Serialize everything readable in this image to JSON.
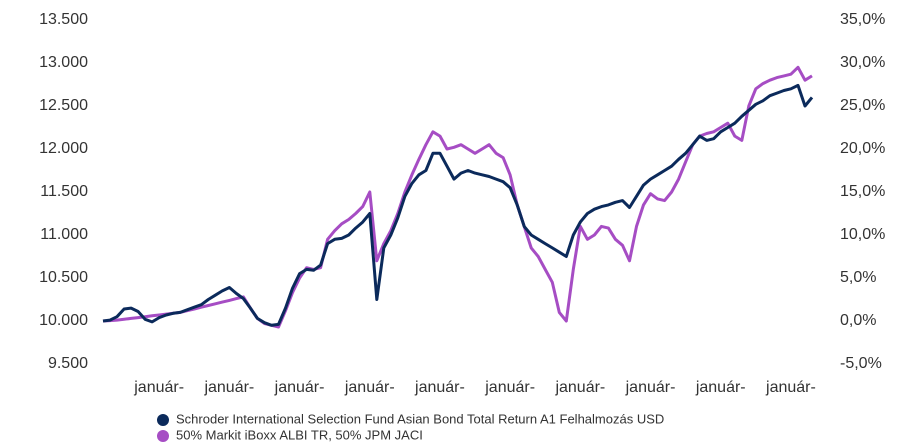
{
  "chart_data": {
    "type": "line",
    "categories": [
      null,
      null,
      null,
      null,
      null,
      null,
      null,
      null,
      "január-",
      null,
      null,
      null,
      null,
      null,
      null,
      null,
      null,
      null,
      "január-",
      null,
      null,
      null,
      null,
      null,
      null,
      null,
      null,
      null,
      "január-",
      null,
      null,
      null,
      null,
      null,
      null,
      null,
      null,
      null,
      "január-",
      null,
      null,
      null,
      null,
      null,
      null,
      null,
      null,
      null,
      "január-",
      null,
      null,
      null,
      null,
      null,
      null,
      null,
      null,
      null,
      "január-",
      null,
      null,
      null,
      null,
      null,
      null,
      null,
      null,
      null,
      "január-",
      null,
      null,
      null,
      null,
      null,
      null,
      null,
      null,
      null,
      "január-",
      null,
      null,
      null,
      null,
      null,
      null,
      null,
      null,
      null,
      "január-",
      null,
      null,
      null,
      null,
      null,
      null,
      null,
      null,
      null,
      "január-",
      null,
      null,
      null
    ],
    "series": [
      {
        "name": "Schroder International Selection Fund Asian Bond Total Return A1 Felhalmozás USD",
        "color": "#0b2a5b",
        "values": [
          10000,
          10010,
          10050,
          10140,
          10150,
          10110,
          10020,
          9990,
          10040,
          10070,
          10090,
          10100,
          10130,
          10160,
          10190,
          10250,
          10300,
          10350,
          10390,
          10320,
          10260,
          10150,
          10030,
          9980,
          9950,
          9960,
          10150,
          10380,
          10550,
          10600,
          10590,
          10650,
          10900,
          10950,
          10960,
          11000,
          11080,
          11150,
          11250,
          10250,
          10850,
          11000,
          11200,
          11450,
          11600,
          11700,
          11750,
          11950,
          11950,
          11800,
          11650,
          11720,
          11750,
          11720,
          11700,
          11680,
          11650,
          11620,
          11550,
          11350,
          11100,
          11000,
          10950,
          10900,
          10850,
          10800,
          10750,
          11000,
          11150,
          11250,
          11300,
          11330,
          11350,
          11380,
          11400,
          11320,
          11450,
          11580,
          11650,
          11700,
          11750,
          11800,
          11880,
          11950,
          12050,
          12150,
          12100,
          12120,
          12200,
          12250,
          12300,
          12380,
          12450,
          12520,
          12560,
          12620,
          12650,
          12680,
          12700,
          12740,
          12500,
          12600
        ]
      },
      {
        "name": "50% Markit iBoxx ALBI TR, 50% JPM JACI",
        "color": "#a64dc4",
        "values": [
          10000,
          10005,
          10010,
          10020,
          10030,
          10040,
          10050,
          10060,
          10070,
          10080,
          10090,
          10100,
          10120,
          10140,
          10160,
          10180,
          10200,
          10220,
          10240,
          10260,
          10280,
          10150,
          10030,
          9970,
          9950,
          9930,
          10120,
          10330,
          10500,
          10620,
          10600,
          10620,
          10950,
          11050,
          11130,
          11180,
          11250,
          11330,
          11500,
          10700,
          10900,
          11050,
          11250,
          11500,
          11700,
          11880,
          12050,
          12200,
          12150,
          12000,
          12020,
          12050,
          12000,
          11950,
          12000,
          12050,
          11950,
          11900,
          11700,
          11350,
          11100,
          10850,
          10750,
          10600,
          10450,
          10100,
          10000,
          10600,
          11100,
          10950,
          11000,
          11100,
          11080,
          10950,
          10880,
          10700,
          11100,
          11350,
          11480,
          11420,
          11400,
          11500,
          11650,
          11850,
          12050,
          12150,
          12180,
          12200,
          12250,
          12300,
          12150,
          12100,
          12500,
          12700,
          12760,
          12800,
          12830,
          12850,
          12870,
          12950,
          12800,
          12850
        ]
      }
    ],
    "ylim": [
      9500,
      13500
    ],
    "yticks": [
      {
        "value": 9500,
        "label": "9.500"
      },
      {
        "value": 10000,
        "label": "10.000"
      },
      {
        "value": 10500,
        "label": "10.500"
      },
      {
        "value": 11000,
        "label": "11.000"
      },
      {
        "value": 11500,
        "label": "11.500"
      },
      {
        "value": 12000,
        "label": "12.000"
      },
      {
        "value": 12500,
        "label": "12.500"
      },
      {
        "value": 13000,
        "label": "13.000"
      },
      {
        "value": 13500,
        "label": "13.500"
      }
    ],
    "y2lim": [
      -5,
      35
    ],
    "y2ticks": [
      {
        "value": -5,
        "label": "-5,0%"
      },
      {
        "value": 0,
        "label": "0,0%"
      },
      {
        "value": 5,
        "label": "5,0%"
      },
      {
        "value": 10,
        "label": "10,0%"
      },
      {
        "value": 15,
        "label": "15,0%"
      },
      {
        "value": 20,
        "label": "20,0%"
      },
      {
        "value": 25,
        "label": "25,0%"
      },
      {
        "value": 30,
        "label": "30,0%"
      },
      {
        "value": 35,
        "label": "35,0%"
      }
    ],
    "grid": false,
    "legend": "bottom"
  }
}
